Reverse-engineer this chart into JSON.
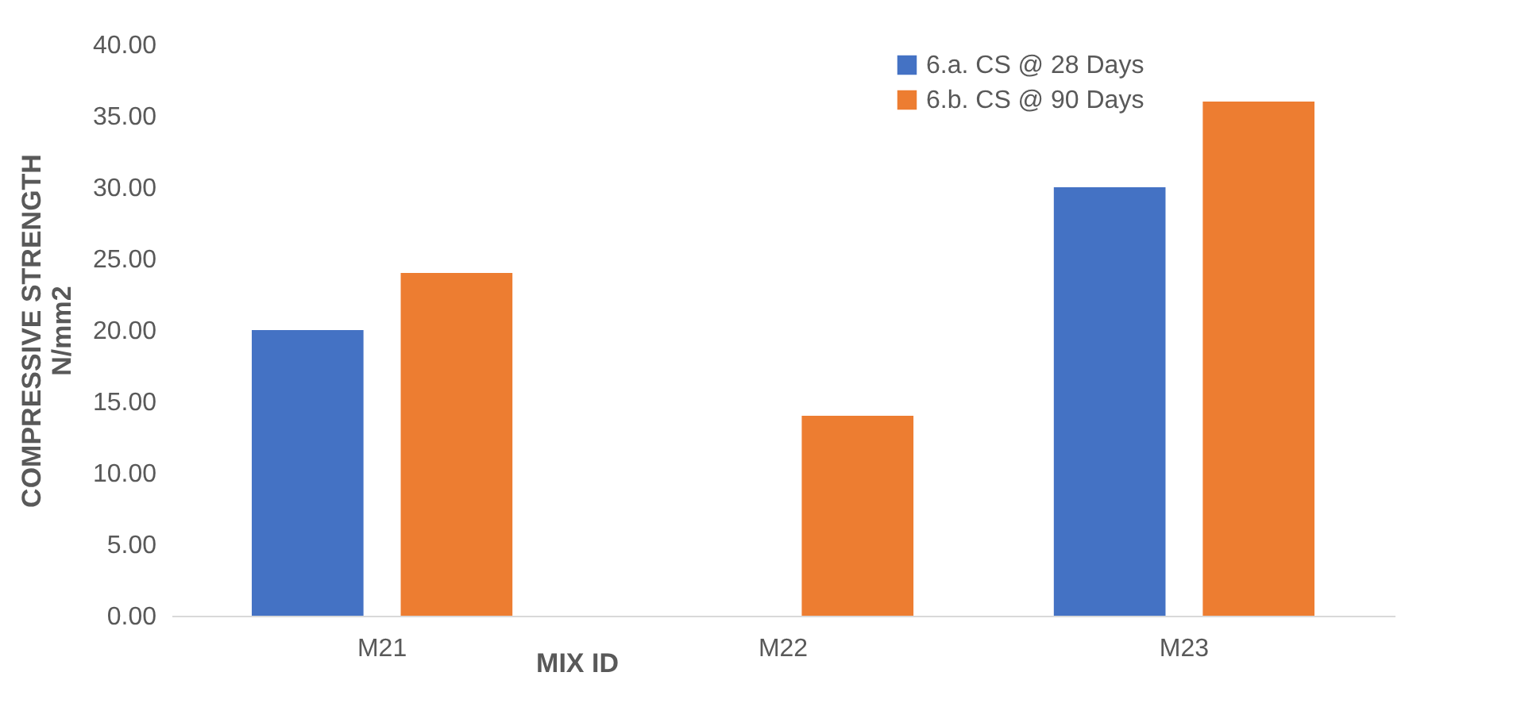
{
  "chart_data": {
    "type": "bar",
    "xlabel": "MIX ID",
    "ylabel": "COMPRESSIVE STRENGTH N/mm2",
    "categories": [
      "M21",
      "M22",
      "M23"
    ],
    "series": [
      {
        "name": "6.a. CS @ 28 Days",
        "color": "#4472c4",
        "values": [
          20.0,
          null,
          30.0
        ]
      },
      {
        "name": "6.b. CS @ 90 Days",
        "color": "#ed7d31",
        "values": [
          24.0,
          14.0,
          36.0
        ]
      }
    ],
    "ylim": [
      0,
      40
    ],
    "yticks": [
      {
        "value": 0,
        "label": "0.00"
      },
      {
        "value": 5,
        "label": "5.00"
      },
      {
        "value": 10,
        "label": "10.00"
      },
      {
        "value": 15,
        "label": "15.00"
      },
      {
        "value": 20,
        "label": "20.00"
      },
      {
        "value": 25,
        "label": "25.00"
      },
      {
        "value": 30,
        "label": "30.00"
      },
      {
        "value": 35,
        "label": "35.00"
      },
      {
        "value": 40,
        "label": "40.00"
      }
    ],
    "grid": false,
    "legend": "top right"
  }
}
